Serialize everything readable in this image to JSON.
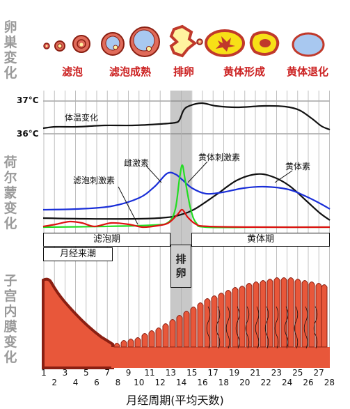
{
  "side_labels": {
    "ovary": [
      "卵",
      "巣",
      "変",
      "化"
    ],
    "hormone": [
      "荷",
      "尔",
      "蒙",
      "变",
      "化"
    ],
    "endometrium": [
      "子",
      "宫",
      "内",
      "膜",
      "变",
      "化"
    ]
  },
  "ovary_stages": [
    "滤泡",
    "滤泡成熟",
    "排卵",
    "黄体形成",
    "黄体退化"
  ],
  "temperature": {
    "high_label": "37°C",
    "low_label": "36°C",
    "curve_label": "体温变化"
  },
  "hormones": {
    "fsh": {
      "label": "滤泡刺激素",
      "color": "#dd1111"
    },
    "estrogen": {
      "label": "雌激素",
      "color": "#1a2fd8"
    },
    "lh": {
      "label": "黄体刺激素",
      "color": "#22dd22"
    },
    "progesterone": {
      "label": "黄体素",
      "color": "#111111"
    }
  },
  "phases": {
    "follicular": "滤泡期",
    "luteal": "黄体期",
    "menstruation": "月经来潮",
    "ovulation": [
      "排",
      "卵"
    ]
  },
  "x_axis": {
    "ticks_top": [
      "1",
      "3",
      "5",
      "7",
      "9",
      "11",
      "13",
      "15",
      "17",
      "19",
      "21",
      "23",
      "25",
      "27"
    ],
    "ticks_bottom": [
      "2",
      "4",
      "6",
      "8",
      "10",
      "12",
      "14",
      "16",
      "18",
      "20",
      "22",
      "24",
      "26",
      "28"
    ],
    "label": "月经周期(平均天数)"
  },
  "colors": {
    "side_label": "#9a9a9a",
    "stage_label": "#cc2222",
    "endometrium": "#e8573a",
    "endometrium_dark": "#8a1f12",
    "ovulation_band": "#c8c8c8"
  }
}
